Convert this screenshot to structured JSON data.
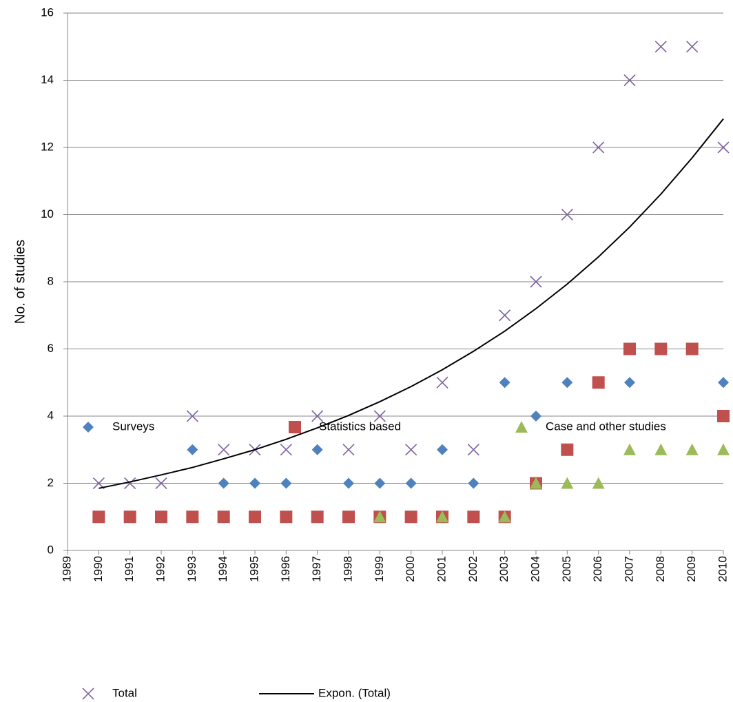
{
  "chart_data": {
    "type": "scatter",
    "y_label": "No. of studies",
    "xlim": [
      1989,
      2010
    ],
    "xticks": [
      1989,
      1990,
      1991,
      1992,
      1993,
      1994,
      1995,
      1996,
      1997,
      1998,
      1999,
      2000,
      2001,
      2002,
      2003,
      2004,
      2005,
      2006,
      2007,
      2008,
      2009,
      2010
    ],
    "ylim": [
      0,
      16
    ],
    "yticks": [
      0,
      2,
      4,
      6,
      8,
      10,
      12,
      14,
      16
    ],
    "grid": true,
    "legend": "bottom",
    "series": [
      {
        "name": "Surveys",
        "color": "#4f81bd",
        "marker": "diamond",
        "x": [
          1993,
          1994,
          1995,
          1996,
          1997,
          1998,
          1999,
          2000,
          2001,
          2002,
          2003,
          2004,
          2005,
          2007,
          2010
        ],
        "values": [
          3,
          2,
          2,
          2,
          3,
          2,
          2,
          2,
          3,
          2,
          5,
          4,
          5,
          5,
          5
        ]
      },
      {
        "name": "Statistics based",
        "color": "#c0504d",
        "marker": "square",
        "x": [
          1990,
          1991,
          1992,
          1993,
          1994,
          1995,
          1996,
          1997,
          1998,
          1999,
          2000,
          2001,
          2002,
          2003,
          2004,
          2005,
          2006,
          2007,
          2008,
          2009,
          2010
        ],
        "values": [
          1,
          1,
          1,
          1,
          1,
          1,
          1,
          1,
          1,
          1,
          1,
          1,
          1,
          1,
          2,
          3,
          5,
          6,
          6,
          6,
          4
        ]
      },
      {
        "name": "Case and other studies",
        "color": "#9bbb59",
        "marker": "triangle",
        "x": [
          1999,
          2001,
          2003,
          2004,
          2005,
          2006,
          2007,
          2008,
          2009,
          2010
        ],
        "values": [
          1,
          1,
          1,
          2,
          2,
          2,
          3,
          3,
          3,
          3
        ]
      },
      {
        "name": "Total",
        "color": "#8064a2",
        "marker": "x",
        "x": [
          1990,
          1991,
          1992,
          1993,
          1994,
          1995,
          1996,
          1997,
          1998,
          1999,
          2000,
          2001,
          2002,
          2003,
          2004,
          2005,
          2006,
          2007,
          2008,
          2009,
          2010
        ],
        "values": [
          2,
          2,
          2,
          4,
          3,
          3,
          3,
          4,
          3,
          4,
          3,
          5,
          3,
          7,
          8,
          10,
          12,
          14,
          15,
          15,
          12
        ]
      },
      {
        "name": "Expon. (Total)",
        "color": "#000000",
        "marker": "line",
        "x": [
          1990,
          1991,
          1992,
          1993,
          1994,
          1995,
          1996,
          1997,
          1998,
          1999,
          2000,
          2001,
          2002,
          2003,
          2004,
          2005,
          2006,
          2007,
          2008,
          2009,
          2010
        ],
        "values": [
          1.85,
          2.04,
          2.25,
          2.47,
          2.73,
          3.0,
          3.31,
          3.65,
          4.02,
          4.43,
          4.88,
          5.38,
          5.93,
          6.53,
          7.2,
          7.93,
          8.74,
          9.63,
          10.61,
          11.69,
          12.85
        ]
      }
    ]
  }
}
